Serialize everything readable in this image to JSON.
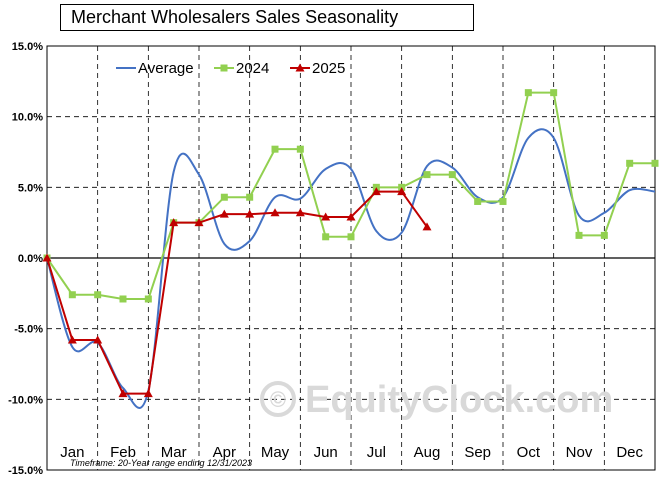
{
  "chart_data": {
    "type": "line",
    "title": "Merchant  Wholesalers Sales Seasonality",
    "categories": [
      "Jan",
      "Feb",
      "Mar",
      "Apr",
      "May",
      "Jun",
      "Jul",
      "Aug",
      "Sep",
      "Oct",
      "Nov",
      "Dec"
    ],
    "y_tick_labels": [
      "15.0%",
      "10.0%",
      "5.0%",
      "0.0%",
      "-5.0%",
      "-10.0%",
      "-15.0%"
    ],
    "ylim": [
      -15,
      15
    ],
    "y_unit": "%",
    "legend_position": "top-left",
    "series": [
      {
        "name": "Average",
        "color": "#4472c4",
        "style": "smooth",
        "x": [
          0,
          0.5,
          1.0,
          1.5,
          2.0,
          2.5,
          3.0,
          3.5,
          4.0,
          4.5,
          5.0,
          5.5,
          6.0,
          6.5,
          7.0,
          7.5,
          8.0,
          8.5,
          9.0,
          9.5,
          10.0,
          10.5,
          11.0,
          11.5,
          12.0
        ],
        "values": [
          0.0,
          -6.3,
          -6.0,
          -9.2,
          -9.4,
          6.1,
          5.9,
          1.0,
          1.2,
          4.3,
          4.2,
          6.3,
          6.3,
          1.9,
          1.8,
          6.5,
          6.4,
          4.3,
          4.3,
          8.5,
          8.5,
          3.0,
          3.2,
          4.8,
          4.7
        ]
      },
      {
        "name": "2024",
        "color": "#92d050",
        "marker": "square",
        "x": [
          0,
          0.5,
          1.0,
          1.5,
          2.0,
          2.5,
          3.0,
          3.5,
          4.0,
          4.5,
          5.0,
          5.5,
          6.0,
          6.5,
          7.0,
          7.5,
          8.0,
          8.5,
          9.0,
          9.5,
          10.0,
          10.5,
          11.0,
          11.5,
          12.0
        ],
        "values": [
          0.0,
          -2.6,
          -2.6,
          -2.9,
          -2.9,
          2.5,
          2.5,
          4.3,
          4.3,
          7.7,
          7.7,
          1.5,
          1.5,
          5.0,
          5.0,
          5.9,
          5.9,
          4.0,
          4.0,
          11.7,
          11.7,
          1.6,
          1.6,
          6.7,
          6.7
        ]
      },
      {
        "name": "2025",
        "color": "#c00000",
        "marker": "triangle",
        "x": [
          0,
          0.5,
          1.0,
          1.5,
          2.0,
          2.5,
          3.0,
          3.5,
          4.0,
          4.5,
          5.0,
          5.5,
          6.0,
          6.5,
          7.0,
          7.5
        ],
        "values": [
          0.0,
          -5.8,
          -5.8,
          -9.6,
          -9.6,
          2.5,
          2.5,
          3.1,
          3.1,
          3.2,
          3.2,
          2.9,
          2.9,
          4.7,
          4.7,
          2.2
        ]
      }
    ],
    "footnote": "Timeframe: 20-Year range ending 12/31/2023",
    "watermark": "EquityClock.com"
  }
}
